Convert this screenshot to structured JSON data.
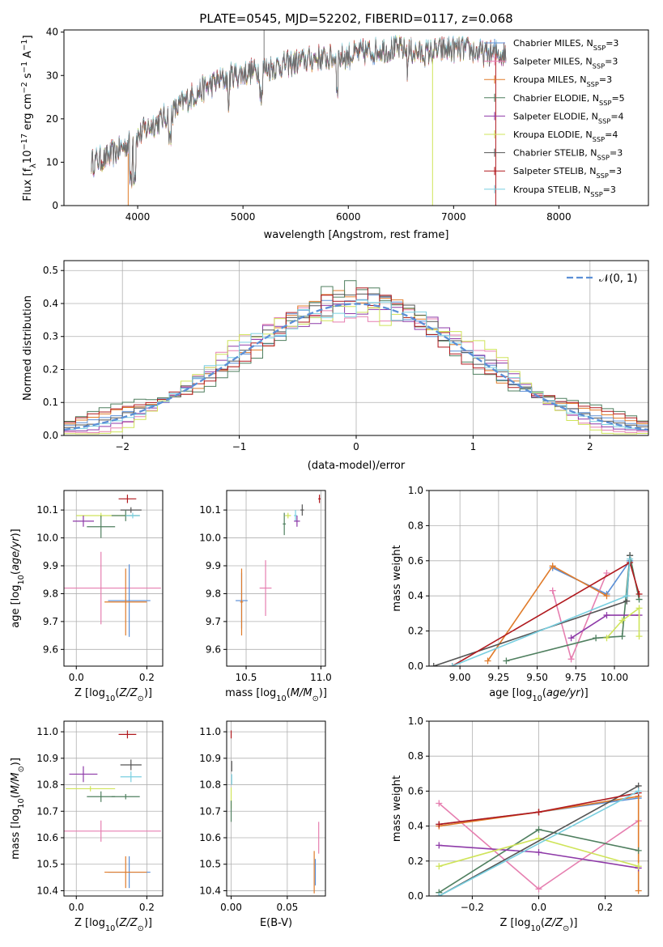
{
  "figure": {
    "title": "PLATE=0545, MJD=52202, FIBERID=0117, z=0.068"
  },
  "colors": {
    "Chabrier MILES": "#5b8fd6",
    "Salpeter MILES": "#e67fb0",
    "Kroupa MILES": "#e07b2a",
    "Chabrier ELODIE": "#4f7f5f",
    "Salpeter ELODIE": "#8e3aa8",
    "Kroupa ELODIE": "#cfe45a",
    "Chabrier STELIB": "#555555",
    "Salpeter STELIB": "#b0191e",
    "Kroupa STELIB": "#79cfe0"
  },
  "chart_data": [
    {
      "id": "spectrum",
      "type": "line",
      "title": "PLATE=0545, MJD=52202, FIBERID=0117, z=0.068",
      "xlabel": "wavelength [Angstrom, rest frame]",
      "ylabel": "Flux [f_λ10^-17 erg cm^-2 s^-1 A^-1]",
      "xlim": [
        3300,
        8850
      ],
      "ylim": [
        0,
        40.5
      ],
      "xticks": [
        4000,
        5000,
        6000,
        7000,
        8000
      ],
      "yticks": [
        0,
        10,
        20,
        30,
        40
      ],
      "observed_envelope": {
        "x": [
          3560,
          3700,
          3900,
          4100,
          4300,
          4500,
          4700,
          4900,
          5100,
          5300,
          5500,
          5700,
          5900,
          6100,
          6300,
          6500,
          6700,
          6900,
          7100,
          7300,
          7500
        ],
        "y": [
          10,
          11,
          14,
          18,
          21,
          25,
          28,
          30,
          31,
          32,
          33,
          34,
          34,
          35,
          36,
          36,
          35,
          36,
          36,
          35,
          35
        ]
      },
      "legend": [
        {
          "label": "Chabrier MILES, N_SSP=3",
          "prefix": "Chabrier MILES, N",
          "sub": "SSP",
          "suffix": "=3"
        },
        {
          "label": "Salpeter MILES, N_SSP=3",
          "prefix": "Salpeter MILES, N",
          "sub": "SSP",
          "suffix": "=3"
        },
        {
          "label": "Kroupa MILES, N_SSP=3",
          "prefix": "Kroupa MILES, N",
          "sub": "SSP",
          "suffix": "=3"
        },
        {
          "label": "Chabrier ELODIE, N_SSP=5",
          "prefix": "Chabrier ELODIE, N",
          "sub": "SSP",
          "suffix": "=5"
        },
        {
          "label": "Salpeter ELODIE, N_SSP=4",
          "prefix": "Salpeter ELODIE, N",
          "sub": "SSP",
          "suffix": "=4"
        },
        {
          "label": "Kroupa ELODIE, N_SSP=4",
          "prefix": "Kroupa ELODIE, N",
          "sub": "SSP",
          "suffix": "=4"
        },
        {
          "label": "Chabrier STELIB, N_SSP=3",
          "prefix": "Chabrier STELIB, N",
          "sub": "SSP",
          "suffix": "=3"
        },
        {
          "label": "Salpeter STELIB, N_SSP=3",
          "prefix": "Salpeter STELIB, N",
          "sub": "SSP",
          "suffix": "=3"
        },
        {
          "label": "Kroupa STELIB, N_SSP=3",
          "prefix": "Kroupa STELIB, N",
          "sub": "SSP",
          "suffix": "=3"
        }
      ],
      "legend_loc": "upper right"
    },
    {
      "id": "residuals",
      "type": "line",
      "xlabel": "(data-model)/error",
      "ylabel": "Normed distribution",
      "xlim": [
        -2.5,
        2.5
      ],
      "ylim": [
        0,
        0.53
      ],
      "xticks": [
        -2,
        -1,
        0,
        1,
        2
      ],
      "xtick_labels": [
        "−2",
        "−1",
        "0",
        "1",
        "2"
      ],
      "yticks": [
        0.0,
        0.1,
        0.2,
        0.3,
        0.4,
        0.5
      ],
      "ytick_labels": [
        "0.0",
        "0.1",
        "0.2",
        "0.3",
        "0.4",
        "0.5"
      ],
      "bin_width": 0.1,
      "legend": "𝒩(0, 1)",
      "legend_loc": "upper right",
      "grid": true,
      "histograms": [
        {
          "name": "Chabrier MILES",
          "offset": 0.01
        },
        {
          "name": "Salpeter MILES",
          "offset": -0.03
        },
        {
          "name": "Kroupa MILES",
          "offset": 0.02
        },
        {
          "name": "Chabrier ELODIE",
          "offset": 0.04
        },
        {
          "name": "Salpeter ELODIE",
          "offset": -0.02
        },
        {
          "name": "Kroupa ELODIE",
          "offset": -0.04
        },
        {
          "name": "Chabrier STELIB",
          "offset": 0.0
        },
        {
          "name": "Salpeter STELIB",
          "offset": 0.03
        },
        {
          "name": "Kroupa STELIB",
          "offset": -0.01
        }
      ]
    },
    {
      "id": "age_vs_Z",
      "type": "scatter",
      "xlabel": "Z [log10(Z/Z⊙)]",
      "ylabel": "age [log10(age/yr)]",
      "xlim": [
        -0.035,
        0.245
      ],
      "ylim": [
        9.54,
        10.17
      ],
      "xticks": [
        0.0,
        0.2
      ],
      "xtick_labels": [
        "0.0",
        "0.2"
      ],
      "yticks": [
        9.6,
        9.7,
        9.8,
        9.9,
        10.0,
        10.1
      ],
      "ytick_labels": [
        "9.6",
        "9.7",
        "9.8",
        "9.9",
        "10.0",
        "10.1"
      ],
      "points": [
        {
          "series": "Salpeter STELIB",
          "x": 0.145,
          "y": 10.14,
          "xerr": 0.025,
          "yerr": 0.015
        },
        {
          "series": "Chabrier STELIB",
          "x": 0.155,
          "y": 10.1,
          "xerr": 0.03,
          "yerr": 0.01
        },
        {
          "series": "Kroupa ELODIE",
          "x": 0.07,
          "y": 10.08,
          "xerr": 0.07,
          "yerr": 0.01
        },
        {
          "series": "Chabrier ELODIE",
          "x": 0.14,
          "y": 10.08,
          "xerr": 0.04,
          "yerr": 0.02
        },
        {
          "series": "Kroupa STELIB",
          "x": 0.16,
          "y": 10.08,
          "xerr": 0.02,
          "yerr": 0.01
        },
        {
          "series": "Salpeter ELODIE",
          "x": 0.02,
          "y": 10.06,
          "xerr": 0.03,
          "yerr": 0.02
        },
        {
          "series": "Chabrier ELODIE",
          "x": 0.07,
          "y": 10.04,
          "xerr": 0.04,
          "yerr": 0.04
        },
        {
          "series": "Salpeter MILES",
          "x": 0.07,
          "y": 9.82,
          "xerr": 0.17,
          "yerr": 0.13
        },
        {
          "series": "Chabrier MILES",
          "x": 0.15,
          "y": 9.775,
          "xerr": 0.06,
          "yerr": 0.13
        },
        {
          "series": "Kroupa MILES",
          "x": 0.14,
          "y": 9.77,
          "xerr": 0.06,
          "yerr": 0.12
        }
      ]
    },
    {
      "id": "age_vs_mass",
      "type": "scatter",
      "xlabel": "mass [log10(M/M⊙)]",
      "xlim": [
        10.37,
        11.03
      ],
      "ylim": [
        9.54,
        10.17
      ],
      "xticks": [
        10.5,
        11.0
      ],
      "xtick_labels": [
        "10.5",
        "11.0"
      ],
      "yticks": [
        9.6,
        9.7,
        9.8,
        9.9,
        10.0,
        10.1
      ],
      "ytick_labels": [
        "9.6",
        "9.7",
        "9.8",
        "9.9",
        "10.0",
        "10.1"
      ],
      "points": [
        {
          "series": "Salpeter STELIB",
          "x": 10.99,
          "y": 10.14,
          "xerr": 0.008,
          "yerr": 0.015
        },
        {
          "series": "Chabrier STELIB",
          "x": 10.875,
          "y": 10.1,
          "xerr": 0.012,
          "yerr": 0.02
        },
        {
          "series": "Kroupa STELIB",
          "x": 10.83,
          "y": 10.08,
          "xerr": 0.01,
          "yerr": 0.02
        },
        {
          "series": "Salpeter ELODIE",
          "x": 10.84,
          "y": 10.06,
          "xerr": 0.02,
          "yerr": 0.02
        },
        {
          "series": "Kroupa ELODIE",
          "x": 10.78,
          "y": 10.08,
          "xerr": 0.02,
          "yerr": 0.01
        },
        {
          "series": "Chabrier ELODIE",
          "x": 10.755,
          "y": 10.05,
          "xerr": 0.01,
          "yerr": 0.04
        },
        {
          "series": "Salpeter MILES",
          "x": 10.63,
          "y": 9.82,
          "xerr": 0.04,
          "yerr": 0.1
        },
        {
          "series": "Chabrier MILES",
          "x": 10.47,
          "y": 9.775,
          "xerr": 0.04,
          "yerr": 0.1
        },
        {
          "series": "Kroupa MILES",
          "x": 10.47,
          "y": 9.77,
          "xerr": 0.01,
          "yerr": 0.12
        }
      ]
    },
    {
      "id": "mass_weight_vs_age",
      "type": "line",
      "xlabel": "age [log10(age/yr)]",
      "ylabel": "mass weight",
      "xlim": [
        8.8,
        10.22
      ],
      "ylim": [
        0,
        1.0
      ],
      "xticks": [
        9.0,
        9.25,
        9.5,
        9.75,
        10.0
      ],
      "xtick_labels": [
        "9.00",
        "9.25",
        "9.50",
        "9.75",
        "10.00"
      ],
      "yticks": [
        0.0,
        0.2,
        0.4,
        0.6,
        0.8,
        1.0
      ],
      "ytick_labels": [
        "0.0",
        "0.2",
        "0.4",
        "0.6",
        "0.8",
        "1.0"
      ],
      "series": [
        {
          "name": "Chabrier MILES",
          "x": [
            9.6,
            9.95,
            10.1
          ],
          "y": [
            0.56,
            0.41,
            0.6
          ]
        },
        {
          "name": "Salpeter MILES",
          "x": [
            9.6,
            9.72,
            9.95
          ],
          "y": [
            0.43,
            0.04,
            0.53
          ]
        },
        {
          "name": "Kroupa MILES",
          "x": [
            9.18,
            9.6,
            9.95
          ],
          "y": [
            0.03,
            0.57,
            0.4
          ]
        },
        {
          "name": "Chabrier ELODIE",
          "x": [
            9.3,
            9.88,
            10.05,
            10.1,
            10.16
          ],
          "y": [
            0.03,
            0.16,
            0.17,
            0.63,
            0.38
          ]
        },
        {
          "name": "Salpeter ELODIE",
          "x": [
            9.72,
            9.95,
            10.16
          ],
          "y": [
            0.16,
            0.29,
            0.29
          ]
        },
        {
          "name": "Kroupa ELODIE",
          "x": [
            9.95,
            10.05,
            10.16,
            10.16
          ],
          "y": [
            0.16,
            0.26,
            0.33,
            0.17
          ]
        },
        {
          "name": "Chabrier STELIB",
          "x": [
            8.83,
            10.08,
            10.1
          ],
          "y": [
            0.0,
            0.37,
            0.63
          ]
        },
        {
          "name": "Salpeter STELIB",
          "x": [
            8.95,
            10.1,
            10.16
          ],
          "y": [
            0.0,
            0.59,
            0.41
          ]
        },
        {
          "name": "Kroupa STELIB",
          "x": [
            8.95,
            10.08,
            10.1
          ],
          "y": [
            0.0,
            0.4,
            0.61
          ]
        }
      ]
    },
    {
      "id": "mass_vs_Z",
      "type": "scatter",
      "xlabel": "Z [log10(Z/Z⊙)]",
      "ylabel": "mass [log10(M/M⊙)]",
      "xlim": [
        -0.035,
        0.245
      ],
      "ylim": [
        10.38,
        11.04
      ],
      "xticks": [
        0.0,
        0.2
      ],
      "xtick_labels": [
        "0.0",
        "0.2"
      ],
      "yticks": [
        10.4,
        10.5,
        10.6,
        10.7,
        10.8,
        10.9,
        11.0
      ],
      "ytick_labels": [
        "10.4",
        "10.5",
        "10.6",
        "10.7",
        "10.8",
        "10.9",
        "11.0"
      ],
      "points": [
        {
          "series": "Salpeter STELIB",
          "x": 0.145,
          "y": 10.99,
          "xerr": 0.025,
          "yerr": 0.015
        },
        {
          "series": "Chabrier STELIB",
          "x": 0.155,
          "y": 10.875,
          "xerr": 0.03,
          "yerr": 0.02
        },
        {
          "series": "Salpeter ELODIE",
          "x": 0.02,
          "y": 10.84,
          "xerr": 0.04,
          "yerr": 0.03
        },
        {
          "series": "Kroupa STELIB",
          "x": 0.155,
          "y": 10.83,
          "xerr": 0.03,
          "yerr": 0.02
        },
        {
          "series": "Kroupa ELODIE",
          "x": 0.04,
          "y": 10.785,
          "xerr": 0.07,
          "yerr": 0.01
        },
        {
          "series": "Chabrier ELODIE",
          "x": 0.07,
          "y": 10.755,
          "xerr": 0.04,
          "yerr": 0.02
        },
        {
          "series": "Chabrier ELODIE",
          "x": 0.14,
          "y": 10.755,
          "xerr": 0.04,
          "yerr": 0.01
        },
        {
          "series": "Salpeter MILES",
          "x": 0.07,
          "y": 10.625,
          "xerr": 0.17,
          "yerr": 0.04
        },
        {
          "series": "Chabrier MILES",
          "x": 0.15,
          "y": 10.47,
          "xerr": 0.06,
          "yerr": 0.06
        },
        {
          "series": "Kroupa MILES",
          "x": 0.14,
          "y": 10.47,
          "xerr": 0.06,
          "yerr": 0.06
        }
      ]
    },
    {
      "id": "mass_vs_EBV",
      "type": "scatter",
      "xlabel": "E(B-V)",
      "xlim": [
        -0.004,
        0.084
      ],
      "ylim": [
        10.38,
        11.04
      ],
      "xticks": [
        0.0,
        0.05
      ],
      "xtick_labels": [
        "0.00",
        "0.05"
      ],
      "yticks": [
        10.4,
        10.5,
        10.6,
        10.7,
        10.8,
        10.9,
        11.0
      ],
      "ytick_labels": [
        "10.4",
        "10.5",
        "10.6",
        "10.7",
        "10.8",
        "10.9",
        "11.0"
      ],
      "points": [
        {
          "series": "Salpeter STELIB",
          "x": 0.0,
          "y": 10.99,
          "xerr": 0.0,
          "yerr": 0.015
        },
        {
          "series": "Chabrier STELIB",
          "x": 0.0005,
          "y": 10.87,
          "xerr": 0.0,
          "yerr": 0.02
        },
        {
          "series": "Kroupa STELIB",
          "x": 0.0005,
          "y": 10.82,
          "xerr": 0.0,
          "yerr": 0.02
        },
        {
          "series": "Kroupa ELODIE",
          "x": 0.0,
          "y": 10.75,
          "xerr": 0.0,
          "yerr": 0.04
        },
        {
          "series": "Chabrier ELODIE",
          "x": 0.0,
          "y": 10.7,
          "xerr": 0.0,
          "yerr": 0.04
        },
        {
          "series": "Salpeter MILES",
          "x": 0.078,
          "y": 10.6,
          "xerr": 0.0,
          "yerr": 0.06
        },
        {
          "series": "Kroupa MILES",
          "x": 0.074,
          "y": 10.47,
          "xerr": 0.0,
          "yerr": 0.08
        },
        {
          "series": "Chabrier MILES",
          "x": 0.075,
          "y": 10.47,
          "xerr": 0.0,
          "yerr": 0.05
        }
      ]
    },
    {
      "id": "mass_weight_vs_Z",
      "type": "line",
      "xlabel": "Z [log10(Z/Z⊙)]",
      "ylabel": "mass weight",
      "xlim": [
        -0.33,
        0.33
      ],
      "ylim": [
        0,
        1.0
      ],
      "xticks": [
        -0.2,
        0.0,
        0.2
      ],
      "xtick_labels": [
        "−0.2",
        "0.0",
        "0.2"
      ],
      "yticks": [
        0.0,
        0.2,
        0.4,
        0.6,
        0.8,
        1.0
      ],
      "ytick_labels": [
        "0.0",
        "0.2",
        "0.4",
        "0.6",
        "0.8",
        "1.0"
      ],
      "series": [
        {
          "name": "Chabrier MILES",
          "x": [
            -0.3,
            0.0,
            0.3
          ],
          "y": [
            0.41,
            0.48,
            0.56
          ]
        },
        {
          "name": "Salpeter MILES",
          "x": [
            -0.3,
            0.0,
            0.3
          ],
          "y": [
            0.53,
            0.04,
            0.43
          ]
        },
        {
          "name": "Kroupa MILES",
          "x": [
            -0.3,
            0.0,
            0.3,
            0.3
          ],
          "y": [
            0.4,
            0.48,
            0.57,
            0.03
          ]
        },
        {
          "name": "Chabrier ELODIE",
          "x": [
            -0.3,
            0.0,
            0.3
          ],
          "y": [
            0.02,
            0.38,
            0.26
          ]
        },
        {
          "name": "Salpeter ELODIE",
          "x": [
            -0.3,
            0.0,
            0.3
          ],
          "y": [
            0.29,
            0.25,
            0.16
          ]
        },
        {
          "name": "Kroupa ELODIE",
          "x": [
            -0.3,
            0.0,
            0.3
          ],
          "y": [
            0.17,
            0.33,
            0.17
          ]
        },
        {
          "name": "Chabrier STELIB",
          "x": [
            -0.3,
            0.3
          ],
          "y": [
            0.0,
            0.63
          ]
        },
        {
          "name": "Salpeter STELIB",
          "x": [
            -0.3,
            0.0,
            0.3
          ],
          "y": [
            0.41,
            0.48,
            0.59
          ]
        },
        {
          "name": "Kroupa STELIB",
          "x": [
            -0.3,
            0.3
          ],
          "y": [
            0.0,
            0.6
          ]
        }
      ]
    }
  ]
}
